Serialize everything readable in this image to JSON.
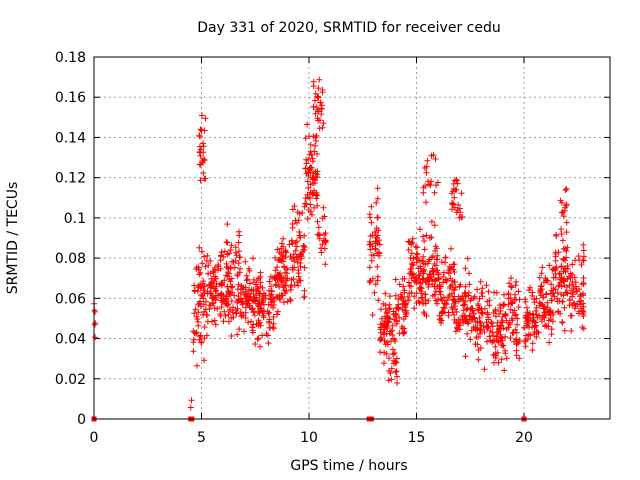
{
  "chart_data": {
    "type": "scatter",
    "title": "Day 331 of 2020, SRMTID for receiver cedu",
    "xlabel": "GPS time / hours",
    "ylabel": "SRMTID / TECUs",
    "xlim": [
      0,
      24
    ],
    "ylim": [
      0,
      0.18
    ],
    "x_ticks": [
      0,
      5,
      10,
      15,
      20
    ],
    "x_tick_labels": [
      "0",
      "5",
      "10",
      "15",
      "20"
    ],
    "y_ticks": [
      0,
      0.02,
      0.04,
      0.06,
      0.08,
      0.1,
      0.12,
      0.14,
      0.16,
      0.18
    ],
    "y_tick_labels": [
      "0",
      "0.02",
      "0.04",
      "0.06",
      "0.08",
      "0.1",
      "0.12",
      "0.14",
      "0.16",
      "0.18"
    ],
    "grid": true,
    "marker": "plus",
    "color": "#ff0000",
    "zero_value_markers_x": [
      0.0,
      4.5,
      4.55,
      12.8,
      12.9,
      20.0
    ],
    "clusters": [
      {
        "x_range": [
          0.0,
          0.1
        ],
        "y_mean": 0.05,
        "y_spread": 0.01,
        "count": 6
      },
      {
        "x_range": [
          4.5,
          4.6
        ],
        "y_mean": 0.01,
        "y_spread": 0.005,
        "count": 2
      },
      {
        "x_range": [
          4.6,
          5.3
        ],
        "y_mean": 0.06,
        "y_spread": 0.03,
        "count": 70
      },
      {
        "x_range": [
          4.9,
          5.2
        ],
        "y_mean": 0.135,
        "y_spread": 0.02,
        "count": 25
      },
      {
        "x_range": [
          5.3,
          6.0
        ],
        "y_mean": 0.065,
        "y_spread": 0.02,
        "count": 70
      },
      {
        "x_range": [
          6.0,
          6.8
        ],
        "y_mean": 0.07,
        "y_spread": 0.025,
        "count": 90
      },
      {
        "x_range": [
          6.8,
          7.6
        ],
        "y_mean": 0.06,
        "y_spread": 0.02,
        "count": 80
      },
      {
        "x_range": [
          7.6,
          8.4
        ],
        "y_mean": 0.055,
        "y_spread": 0.02,
        "count": 80
      },
      {
        "x_range": [
          8.4,
          9.2
        ],
        "y_mean": 0.07,
        "y_spread": 0.02,
        "count": 80
      },
      {
        "x_range": [
          9.2,
          9.8
        ],
        "y_mean": 0.085,
        "y_spread": 0.02,
        "count": 60
      },
      {
        "x_range": [
          9.8,
          10.4
        ],
        "y_mean": 0.12,
        "y_spread": 0.025,
        "count": 70
      },
      {
        "x_range": [
          10.2,
          10.7
        ],
        "y_mean": 0.155,
        "y_spread": 0.015,
        "count": 30
      },
      {
        "x_range": [
          10.4,
          10.8
        ],
        "y_mean": 0.09,
        "y_spread": 0.02,
        "count": 20
      },
      {
        "x_range": [
          12.8,
          13.3
        ],
        "y_mean": 0.085,
        "y_spread": 0.025,
        "count": 50
      },
      {
        "x_range": [
          13.3,
          14.0
        ],
        "y_mean": 0.045,
        "y_spread": 0.015,
        "count": 70
      },
      {
        "x_range": [
          13.7,
          14.1
        ],
        "y_mean": 0.025,
        "y_spread": 0.01,
        "count": 15
      },
      {
        "x_range": [
          14.0,
          14.6
        ],
        "y_mean": 0.055,
        "y_spread": 0.015,
        "count": 50
      },
      {
        "x_range": [
          14.6,
          15.2
        ],
        "y_mean": 0.075,
        "y_spread": 0.02,
        "count": 60
      },
      {
        "x_range": [
          15.2,
          16.0
        ],
        "y_mean": 0.07,
        "y_spread": 0.02,
        "count": 80
      },
      {
        "x_range": [
          15.3,
          16.0
        ],
        "y_mean": 0.12,
        "y_spread": 0.02,
        "count": 20
      },
      {
        "x_range": [
          16.0,
          16.8
        ],
        "y_mean": 0.065,
        "y_spread": 0.02,
        "count": 80
      },
      {
        "x_range": [
          16.6,
          17.2
        ],
        "y_mean": 0.11,
        "y_spread": 0.015,
        "count": 25
      },
      {
        "x_range": [
          16.8,
          17.6
        ],
        "y_mean": 0.055,
        "y_spread": 0.02,
        "count": 70
      },
      {
        "x_range": [
          17.6,
          18.4
        ],
        "y_mean": 0.05,
        "y_spread": 0.02,
        "count": 70
      },
      {
        "x_range": [
          18.4,
          19.2
        ],
        "y_mean": 0.045,
        "y_spread": 0.02,
        "count": 70
      },
      {
        "x_range": [
          19.2,
          19.8
        ],
        "y_mean": 0.05,
        "y_spread": 0.02,
        "count": 50
      },
      {
        "x_range": [
          20.0,
          20.7
        ],
        "y_mean": 0.05,
        "y_spread": 0.015,
        "count": 60
      },
      {
        "x_range": [
          20.7,
          21.4
        ],
        "y_mean": 0.06,
        "y_spread": 0.02,
        "count": 70
      },
      {
        "x_range": [
          21.4,
          22.0
        ],
        "y_mean": 0.07,
        "y_spread": 0.025,
        "count": 60
      },
      {
        "x_range": [
          21.7,
          22.0
        ],
        "y_mean": 0.105,
        "y_spread": 0.012,
        "count": 15
      },
      {
        "x_range": [
          22.0,
          22.8
        ],
        "y_mean": 0.065,
        "y_spread": 0.02,
        "count": 70
      }
    ]
  }
}
